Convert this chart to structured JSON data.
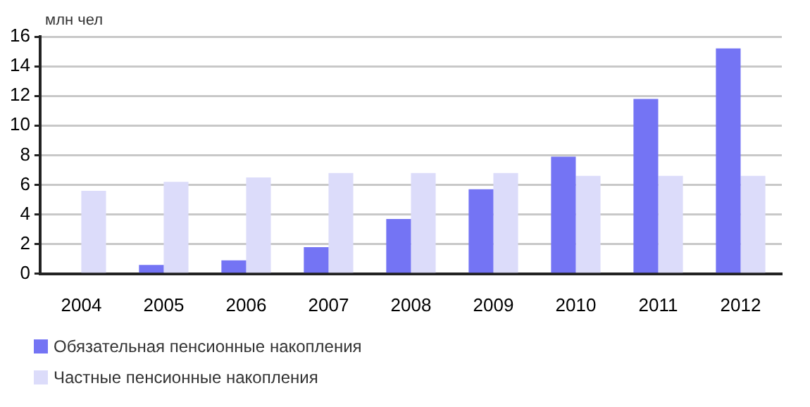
{
  "chart_data": {
    "type": "bar",
    "ylabel": "млн чел",
    "categories": [
      "2004",
      "2005",
      "2006",
      "2007",
      "2008",
      "2009",
      "2010",
      "2011",
      "2012"
    ],
    "series": [
      {
        "name": "Обязательная пенсионные накопления",
        "color": "#7474f4",
        "values": [
          0,
          0.6,
          0.9,
          1.8,
          3.7,
          5.7,
          7.9,
          11.8,
          15.2
        ]
      },
      {
        "name": "Частные пенсионные накопления",
        "color": "#dcdcfa",
        "values": [
          5.6,
          6.2,
          6.5,
          6.8,
          6.8,
          6.8,
          6.6,
          6.6,
          6.6
        ]
      }
    ],
    "ylim": [
      0,
      16
    ],
    "yticks": [
      0,
      2,
      4,
      6,
      8,
      10,
      12,
      14,
      16
    ],
    "grid": "y",
    "legend": "bottom"
  }
}
